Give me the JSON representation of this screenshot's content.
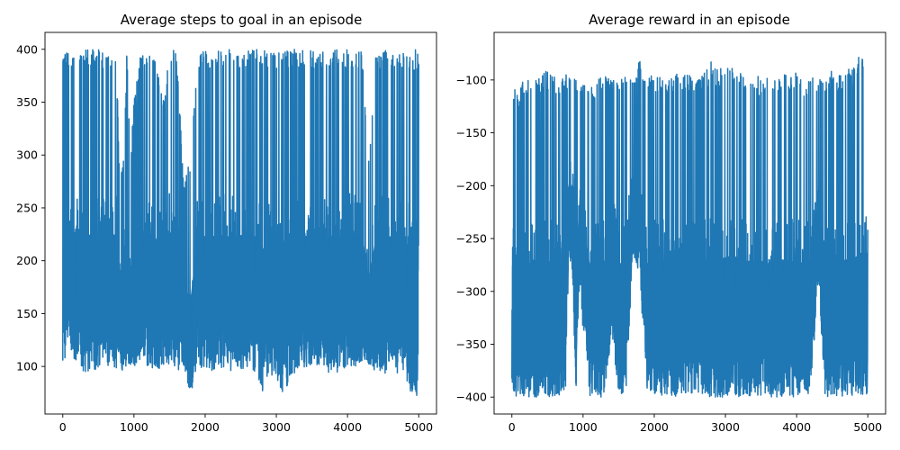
{
  "chart_data": [
    {
      "type": "line",
      "title": "Average steps to goal in an episode",
      "xlabel": "",
      "ylabel": "",
      "xlim": [
        -250,
        5250
      ],
      "ylim": [
        55,
        416
      ],
      "xticks": [
        0,
        1000,
        2000,
        3000,
        4000,
        5000
      ],
      "yticks": [
        100,
        150,
        200,
        250,
        300,
        350,
        400
      ],
      "grid": false,
      "color": "#1f77b4",
      "series": [
        {
          "x": [
            0,
            50,
            100,
            150,
            200,
            250,
            300,
            350,
            400,
            450,
            500,
            550,
            600,
            650,
            700,
            750,
            800,
            850,
            900,
            950,
            1000,
            1100,
            1200,
            1300,
            1400,
            1500,
            1600,
            1700,
            1800,
            1900,
            2000,
            2100,
            2200,
            2300,
            2400,
            2500,
            2600,
            2700,
            2800,
            2900,
            3000,
            3100,
            3200,
            3300,
            3400,
            3500,
            3600,
            3700,
            3800,
            3900,
            4000,
            4100,
            4200,
            4300,
            4400,
            4500,
            4600,
            4700,
            4800,
            4900,
            5000
          ],
          "low": [
            105,
            110,
            120,
            100,
            105,
            100,
            92,
            95,
            100,
            95,
            93,
            98,
            95,
            100,
            100,
            95,
            98,
            95,
            100,
            102,
            100,
            105,
            100,
            95,
            100,
            102,
            95,
            100,
            72,
            100,
            95,
            95,
            98,
            95,
            95,
            97,
            100,
            95,
            72,
            92,
            87,
            72,
            90,
            95,
            95,
            100,
            100,
            95,
            92,
            95,
            95,
            100,
            100,
            100,
            95,
            92,
            95,
            92,
            90,
            72,
            72
          ],
          "high": [
            400,
            400,
            400,
            400,
            400,
            400,
            400,
            400,
            400,
            400,
            400,
            400,
            400,
            400,
            400,
            400,
            280,
            290,
            400,
            300,
            350,
            400,
            400,
            400,
            350,
            400,
            400,
            270,
            300,
            400,
            400,
            400,
            400,
            400,
            400,
            400,
            400,
            400,
            400,
            400,
            400,
            400,
            400,
            400,
            400,
            400,
            400,
            400,
            400,
            400,
            400,
            400,
            400,
            300,
            400,
            400,
            400,
            400,
            400,
            400,
            400
          ]
        }
      ]
    },
    {
      "type": "line",
      "title": "Average reward in an episode",
      "xlabel": "",
      "ylabel": "",
      "xlim": [
        -250,
        5250
      ],
      "ylim": [
        -416,
        -55
      ],
      "xticks": [
        0,
        1000,
        2000,
        3000,
        4000,
        5000
      ],
      "yticks": [
        -100,
        -150,
        -200,
        -250,
        -300,
        -350,
        -400
      ],
      "grid": false,
      "color": "#1f77b4",
      "series": [
        {
          "x": [
            0,
            50,
            100,
            150,
            200,
            250,
            300,
            350,
            400,
            450,
            500,
            550,
            600,
            650,
            700,
            750,
            800,
            850,
            900,
            950,
            1000,
            1100,
            1200,
            1300,
            1400,
            1500,
            1600,
            1700,
            1800,
            1900,
            2000,
            2100,
            2200,
            2300,
            2400,
            2500,
            2600,
            2700,
            2800,
            2900,
            3000,
            3100,
            3200,
            3300,
            3400,
            3500,
            3600,
            3700,
            3800,
            3900,
            4000,
            4100,
            4200,
            4300,
            4400,
            4500,
            4600,
            4700,
            4800,
            4900,
            5000
          ],
          "high": [
            -104,
            -108,
            -118,
            -98,
            -103,
            -98,
            -90,
            -93,
            -98,
            -93,
            -91,
            -96,
            -93,
            -98,
            -98,
            -93,
            -96,
            -93,
            -98,
            -100,
            -98,
            -103,
            -98,
            -93,
            -98,
            -100,
            -93,
            -98,
            -80,
            -98,
            -93,
            -93,
            -96,
            -93,
            -93,
            -95,
            -98,
            -93,
            -80,
            -90,
            -85,
            -80,
            -88,
            -93,
            -93,
            -98,
            -98,
            -93,
            -90,
            -93,
            -93,
            -98,
            -98,
            -98,
            -93,
            -90,
            -93,
            -90,
            -88,
            -75,
            -75
          ],
          "low": [
            -400,
            -400,
            -400,
            -400,
            -400,
            -400,
            -400,
            -400,
            -400,
            -400,
            -400,
            -400,
            -400,
            -400,
            -400,
            -400,
            -270,
            -280,
            -400,
            -290,
            -340,
            -400,
            -400,
            -400,
            -340,
            -400,
            -400,
            -265,
            -290,
            -400,
            -400,
            -400,
            -400,
            -400,
            -400,
            -400,
            -400,
            -400,
            -400,
            -400,
            -400,
            -400,
            -400,
            -400,
            -400,
            -400,
            -400,
            -400,
            -400,
            -400,
            -400,
            -400,
            -400,
            -290,
            -400,
            -400,
            -400,
            -400,
            -400,
            -400,
            -400
          ]
        }
      ]
    }
  ]
}
